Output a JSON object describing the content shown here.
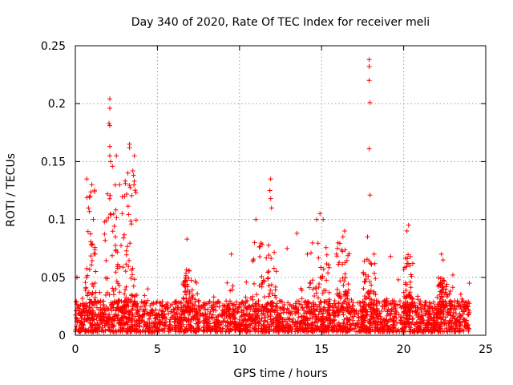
{
  "chart_data": {
    "type": "scatter",
    "title": "Day 340 of 2020, Rate Of TEC Index for receiver meli",
    "xlabel": "GPS time / hours",
    "ylabel": "ROTI / TECUs",
    "xlim": [
      0,
      25
    ],
    "ylim": [
      0,
      0.25
    ],
    "grid": true,
    "x_ticks": [
      0,
      5,
      10,
      15,
      20,
      25
    ],
    "x_tick_labels": [
      "0",
      "5",
      "10",
      "15",
      "20",
      "25"
    ],
    "y_ticks": [
      0,
      0.05,
      0.1,
      0.15,
      0.2,
      0.25
    ],
    "y_tick_labels": [
      "0",
      "0.05",
      "0.1",
      "0.15",
      "0.2",
      "0.25"
    ],
    "marker": "plus",
    "color": "#ff0000",
    "baseline": {
      "x_range": [
        0,
        24
      ],
      "typical_range": [
        0.003,
        0.03
      ]
    },
    "notable_points": [
      {
        "x": 17.9,
        "y": 0.238
      },
      {
        "x": 17.9,
        "y": 0.232
      },
      {
        "x": 17.9,
        "y": 0.22
      },
      {
        "x": 17.95,
        "y": 0.201
      },
      {
        "x": 17.9,
        "y": 0.161
      },
      {
        "x": 17.95,
        "y": 0.121
      },
      {
        "x": 2.1,
        "y": 0.204
      },
      {
        "x": 2.1,
        "y": 0.196
      },
      {
        "x": 2.05,
        "y": 0.183
      },
      {
        "x": 2.1,
        "y": 0.181
      },
      {
        "x": 2.1,
        "y": 0.163
      },
      {
        "x": 2.1,
        "y": 0.155
      },
      {
        "x": 2.15,
        "y": 0.15
      },
      {
        "x": 2.5,
        "y": 0.155
      },
      {
        "x": 3.3,
        "y": 0.165
      },
      {
        "x": 3.3,
        "y": 0.162
      },
      {
        "x": 3.6,
        "y": 0.155
      },
      {
        "x": 3.2,
        "y": 0.14
      },
      {
        "x": 3.5,
        "y": 0.142
      },
      {
        "x": 2.7,
        "y": 0.13
      },
      {
        "x": 3.0,
        "y": 0.12
      },
      {
        "x": 1.0,
        "y": 0.13
      },
      {
        "x": 0.7,
        "y": 0.135
      },
      {
        "x": 0.9,
        "y": 0.12
      },
      {
        "x": 0.8,
        "y": 0.11
      },
      {
        "x": 1.1,
        "y": 0.1
      },
      {
        "x": 11.9,
        "y": 0.135
      },
      {
        "x": 11.85,
        "y": 0.125
      },
      {
        "x": 11.9,
        "y": 0.118
      },
      {
        "x": 11.95,
        "y": 0.11
      },
      {
        "x": 11.0,
        "y": 0.1
      },
      {
        "x": 14.9,
        "y": 0.105
      },
      {
        "x": 14.7,
        "y": 0.1
      },
      {
        "x": 15.1,
        "y": 0.1
      },
      {
        "x": 16.4,
        "y": 0.09
      },
      {
        "x": 16.3,
        "y": 0.085
      },
      {
        "x": 20.3,
        "y": 0.095
      },
      {
        "x": 20.2,
        "y": 0.09
      },
      {
        "x": 6.8,
        "y": 0.083
      },
      {
        "x": 13.5,
        "y": 0.088
      },
      {
        "x": 12.9,
        "y": 0.075
      },
      {
        "x": 17.8,
        "y": 0.085
      },
      {
        "x": 18.2,
        "y": 0.07
      },
      {
        "x": 9.5,
        "y": 0.07
      },
      {
        "x": 19.2,
        "y": 0.068
      },
      {
        "x": 22.3,
        "y": 0.07
      },
      {
        "x": 22.4,
        "y": 0.065
      },
      {
        "x": 23.0,
        "y": 0.052
      },
      {
        "x": 24.0,
        "y": 0.045
      },
      {
        "x": 0.1,
        "y": 0.05
      }
    ]
  }
}
